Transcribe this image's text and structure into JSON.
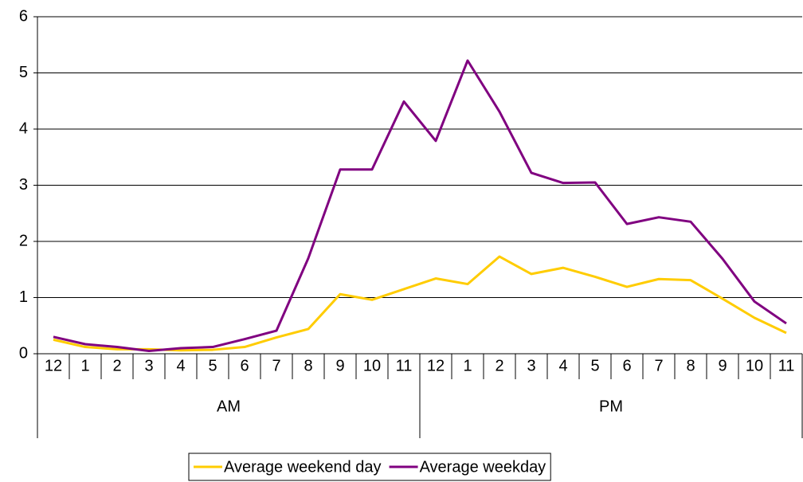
{
  "chart_data": {
    "type": "line",
    "categories": [
      "12",
      "1",
      "2",
      "3",
      "4",
      "5",
      "6",
      "7",
      "8",
      "9",
      "10",
      "11",
      "12",
      "1",
      "2",
      "3",
      "4",
      "5",
      "6",
      "7",
      "8",
      "9",
      "10",
      "11"
    ],
    "groups": [
      "AM",
      "PM"
    ],
    "series": [
      {
        "name": "Average weekend day",
        "color": "#FFCC00",
        "values": [
          0.25,
          0.12,
          0.08,
          0.08,
          0.06,
          0.07,
          0.12,
          0.29,
          0.44,
          1.06,
          0.96,
          1.15,
          1.34,
          1.24,
          1.73,
          1.42,
          1.53,
          1.37,
          1.19,
          1.33,
          1.31,
          0.98,
          0.64,
          0.37
        ]
      },
      {
        "name": "Average weekday",
        "color": "#800080",
        "values": [
          0.3,
          0.17,
          0.12,
          0.05,
          0.1,
          0.12,
          0.26,
          0.41,
          1.7,
          3.28,
          3.28,
          4.49,
          3.79,
          5.22,
          4.31,
          3.22,
          3.04,
          3.05,
          2.31,
          2.43,
          2.35,
          1.69,
          0.93,
          0.54
        ]
      }
    ],
    "ylim": [
      0,
      6
    ],
    "yticks": [
      0,
      1,
      2,
      3,
      4,
      5,
      6
    ],
    "grid": true,
    "legend": "bottom"
  }
}
